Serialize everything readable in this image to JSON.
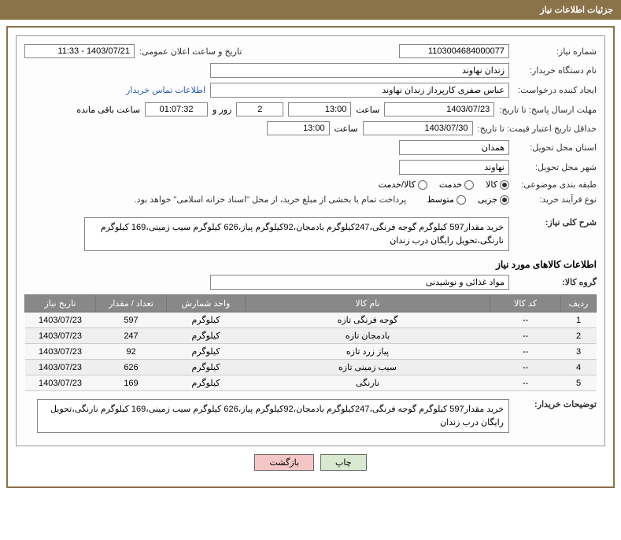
{
  "header": {
    "title": "جزئیات اطلاعات نیاز"
  },
  "fields": {
    "need_number_label": "شماره نیاز:",
    "need_number": "1103004684000077",
    "announce_datetime_label": "تاریخ و ساعت اعلان عمومی:",
    "announce_datetime": "1403/07/21 - 11:33",
    "buyer_org_label": "نام دستگاه خریدار:",
    "buyer_org": "زندان نهاوند",
    "requester_label": "ایجاد کننده درخواست:",
    "requester": "عباس صفری کارپرداز زندان نهاوند",
    "contact_link": "اطلاعات تماس خریدار",
    "response_deadline_label": "مهلت ارسال پاسخ:  تا تاریخ:",
    "response_date": "1403/07/23",
    "time_label": "ساعت",
    "response_time": "13:00",
    "days_remain": "2",
    "days_and": "روز و",
    "hours_remain": "01:07:32",
    "remain_suffix": "ساعت باقی مانده",
    "price_validity_label": "حداقل تاریخ اعتبار قیمت:  تا تاریخ:",
    "price_date": "1403/07/30",
    "price_time": "13:00",
    "delivery_province_label": "استان محل تحویل:",
    "delivery_province": "همدان",
    "delivery_city_label": "شهر محل تحویل:",
    "delivery_city": "نهاوند",
    "subject_class_label": "طبقه بندی موضوعی:",
    "class_goods": "کالا",
    "class_service": "خدمت",
    "class_both": "کالا/خدمت",
    "purchase_type_label": "نوع فرآیند خرید:",
    "type_partial": "جزیی",
    "type_medium": "متوسط",
    "treasury_note": "پرداخت تمام یا بخشی از مبلغ خرید، از محل \"اسناد خزانه اسلامی\" خواهد بود.",
    "general_desc_label": "شرح کلی نیاز:",
    "general_desc": "خرید مقدار597 کیلوگرم گوجه فرنگی،247کیلوگرم بادمجان،92کیلوگرم پیاز،626 کیلوگرم سیب زمینی،169 کیلوگرم نارنگی،تحویل رایگان درب زندان",
    "goods_info_title": "اطلاعات کالاهای مورد نیاز",
    "goods_group_label": "گروه کالا:",
    "goods_group": "مواد غذائی و نوشیدنی",
    "buyer_notes_label": "توضیحات خریدار:",
    "buyer_notes": "خرید مقدار597 کیلوگرم گوجه فرنگی،247کیلوگرم بادمجان،92کیلوگرم پیاز،626 کیلوگرم سیب زمینی،169 کیلوگرم نارنگی،تحویل رایگان درب زندان"
  },
  "table": {
    "headers": {
      "row": "ردیف",
      "code": "کد کالا",
      "name": "نام کالا",
      "unit": "واحد شمارش",
      "qty": "تعداد / مقدار",
      "date": "تاریخ نیاز"
    },
    "rows": [
      {
        "row": "1",
        "code": "--",
        "name": "گوجه فرنگی تازه",
        "unit": "کیلوگرم",
        "qty": "597",
        "date": "1403/07/23"
      },
      {
        "row": "2",
        "code": "--",
        "name": "بادمجان تازه",
        "unit": "کیلوگرم",
        "qty": "247",
        "date": "1403/07/23"
      },
      {
        "row": "3",
        "code": "--",
        "name": "پیاز زرد تازه",
        "unit": "کیلوگرم",
        "qty": "92",
        "date": "1403/07/23"
      },
      {
        "row": "4",
        "code": "--",
        "name": "سیب زمینی تازه",
        "unit": "کیلوگرم",
        "qty": "626",
        "date": "1403/07/23"
      },
      {
        "row": "5",
        "code": "--",
        "name": "نارنگی",
        "unit": "کیلوگرم",
        "qty": "169",
        "date": "1403/07/23"
      }
    ]
  },
  "buttons": {
    "print": "چاپ",
    "back": "بازگشت"
  },
  "colors": {
    "header_bg": "#8a7249",
    "border": "#8a7249"
  }
}
